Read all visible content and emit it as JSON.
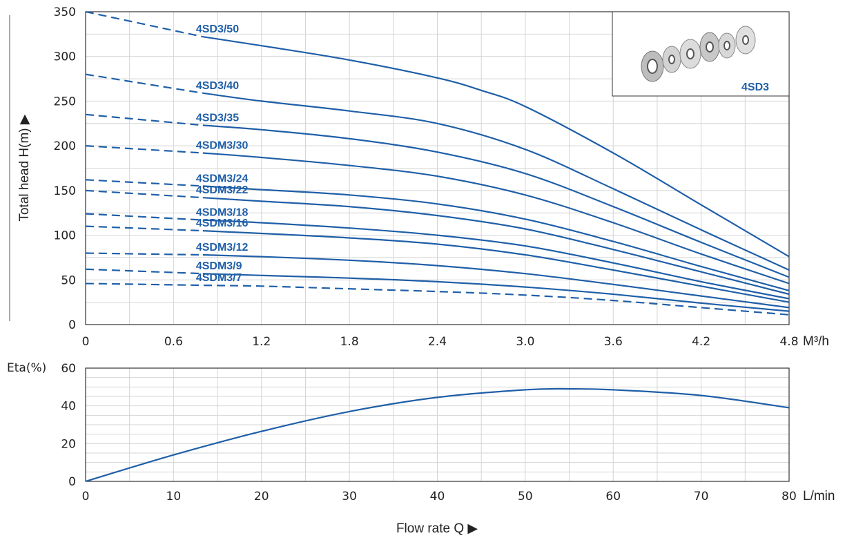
{
  "chart_data": [
    {
      "type": "line",
      "ylabel": "Total head H(m) ▶",
      "x_unit": "M³/h",
      "xlim": [
        0,
        4.8
      ],
      "ylim": [
        0,
        350
      ],
      "x_ticks": [
        "0",
        "0.6",
        "1.2",
        "1.8",
        "2.4",
        "3.0",
        "3.6",
        "4.2",
        "4.8"
      ],
      "y_ticks": [
        "0",
        "50",
        "100",
        "150",
        "200",
        "250",
        "300",
        "350"
      ],
      "grid": true,
      "line_color": "#1f5fa8",
      "inset": {
        "label": "4SD3",
        "image": "impeller-stages"
      },
      "series": [
        {
          "name": "4SD3/50",
          "dashed_until": 0.8,
          "points": [
            [
              0,
              350
            ],
            [
              0.8,
              322
            ],
            [
              1.2,
              312
            ],
            [
              1.8,
              296
            ],
            [
              2.4,
              276
            ],
            [
              2.7,
              262
            ],
            [
              3.0,
              244
            ],
            [
              3.6,
              192
            ],
            [
              4.2,
              134
            ],
            [
              4.8,
              76
            ]
          ]
        },
        {
          "name": "4SD3/40",
          "dashed_until": 0.8,
          "points": [
            [
              0,
              280
            ],
            [
              0.8,
              259
            ],
            [
              1.2,
              250
            ],
            [
              1.8,
              239
            ],
            [
              2.4,
              225
            ],
            [
              3.0,
              196
            ],
            [
              3.6,
              152
            ],
            [
              4.2,
              106
            ],
            [
              4.8,
              61
            ]
          ]
        },
        {
          "name": "4SD3/35",
          "dashed_until": 0.8,
          "points": [
            [
              0,
              235
            ],
            [
              0.8,
              223
            ],
            [
              1.2,
              218
            ],
            [
              1.8,
              208
            ],
            [
              2.4,
              193
            ],
            [
              3.0,
              169
            ],
            [
              3.6,
              132
            ],
            [
              4.2,
              92
            ],
            [
              4.8,
              53
            ]
          ]
        },
        {
          "name": "4SDM3/30",
          "dashed_until": 0.8,
          "points": [
            [
              0,
              200
            ],
            [
              0.8,
              192
            ],
            [
              1.2,
              187
            ],
            [
              1.8,
              178
            ],
            [
              2.4,
              166
            ],
            [
              3.0,
              145
            ],
            [
              3.6,
              114
            ],
            [
              4.2,
              79
            ],
            [
              4.8,
              46
            ]
          ]
        },
        {
          "name": "4SDM3/24",
          "dashed_until": 0.8,
          "points": [
            [
              0,
              162
            ],
            [
              0.8,
              155
            ],
            [
              1.2,
              151
            ],
            [
              1.8,
              145
            ],
            [
              2.4,
              135
            ],
            [
              3.0,
              118
            ],
            [
              3.6,
              93
            ],
            [
              4.2,
              65
            ],
            [
              4.8,
              38
            ]
          ]
        },
        {
          "name": "4SDM3/22",
          "dashed_until": 0.8,
          "points": [
            [
              0,
              150
            ],
            [
              0.8,
              142
            ],
            [
              1.2,
              138
            ],
            [
              1.8,
              132
            ],
            [
              2.4,
              122
            ],
            [
              3.0,
              107
            ],
            [
              3.6,
              84
            ],
            [
              4.2,
              59
            ],
            [
              4.8,
              34
            ]
          ]
        },
        {
          "name": "4SDM3/18",
          "dashed_until": 0.8,
          "points": [
            [
              0,
              124
            ],
            [
              0.8,
              117
            ],
            [
              1.2,
              114
            ],
            [
              1.8,
              108
            ],
            [
              2.4,
              100
            ],
            [
              3.0,
              88
            ],
            [
              3.6,
              69
            ],
            [
              4.2,
              48
            ],
            [
              4.8,
              29
            ]
          ]
        },
        {
          "name": "4SDM3/16",
          "dashed_until": 0.8,
          "points": [
            [
              0,
              110
            ],
            [
              0.8,
              105
            ],
            [
              1.2,
              102
            ],
            [
              1.8,
              97
            ],
            [
              2.4,
              90
            ],
            [
              3.0,
              78
            ],
            [
              3.6,
              61
            ],
            [
              4.2,
              43
            ],
            [
              4.8,
              25
            ]
          ]
        },
        {
          "name": "4SDM3/12",
          "dashed_until": 0.8,
          "points": [
            [
              0,
              80
            ],
            [
              0.8,
              78
            ],
            [
              1.2,
              76
            ],
            [
              1.8,
              72
            ],
            [
              2.4,
              66
            ],
            [
              3.0,
              57
            ],
            [
              3.6,
              45
            ],
            [
              4.2,
              32
            ],
            [
              4.8,
              19
            ]
          ]
        },
        {
          "name": "4SDM3/9",
          "dashed_until": 0.8,
          "points": [
            [
              0,
              62
            ],
            [
              0.8,
              57
            ],
            [
              1.2,
              55
            ],
            [
              1.8,
              52
            ],
            [
              2.4,
              48
            ],
            [
              3.0,
              42
            ],
            [
              3.6,
              34
            ],
            [
              4.2,
              24
            ],
            [
              4.8,
              15
            ]
          ]
        },
        {
          "name": "4SDM3/7",
          "dashed_until": 4.8,
          "points": [
            [
              0,
              46
            ],
            [
              0.8,
              44
            ],
            [
              1.2,
              43
            ],
            [
              1.8,
              40
            ],
            [
              2.4,
              37
            ],
            [
              3.0,
              33
            ],
            [
              3.6,
              27
            ],
            [
              4.2,
              19
            ],
            [
              4.8,
              11
            ]
          ]
        }
      ]
    },
    {
      "type": "line",
      "ylabel": "Eta(%)",
      "xlabel": "Flow rate Q ▶",
      "x_unit": "L/min",
      "xlim": [
        0,
        80
      ],
      "ylim": [
        0,
        60
      ],
      "x_ticks": [
        "0",
        "10",
        "20",
        "30",
        "40",
        "50",
        "60",
        "70",
        "80"
      ],
      "y_ticks": [
        "0",
        "20",
        "40",
        "60"
      ],
      "grid": true,
      "line_color": "#1f5fa8",
      "series": [
        {
          "points": [
            [
              0,
              0
            ],
            [
              10,
              14
            ],
            [
              20,
              26.5
            ],
            [
              30,
              37
            ],
            [
              40,
              44.5
            ],
            [
              50,
              48.5
            ],
            [
              55,
              49
            ],
            [
              60,
              48.5
            ],
            [
              70,
              45.5
            ],
            [
              80,
              39
            ]
          ]
        }
      ]
    }
  ]
}
